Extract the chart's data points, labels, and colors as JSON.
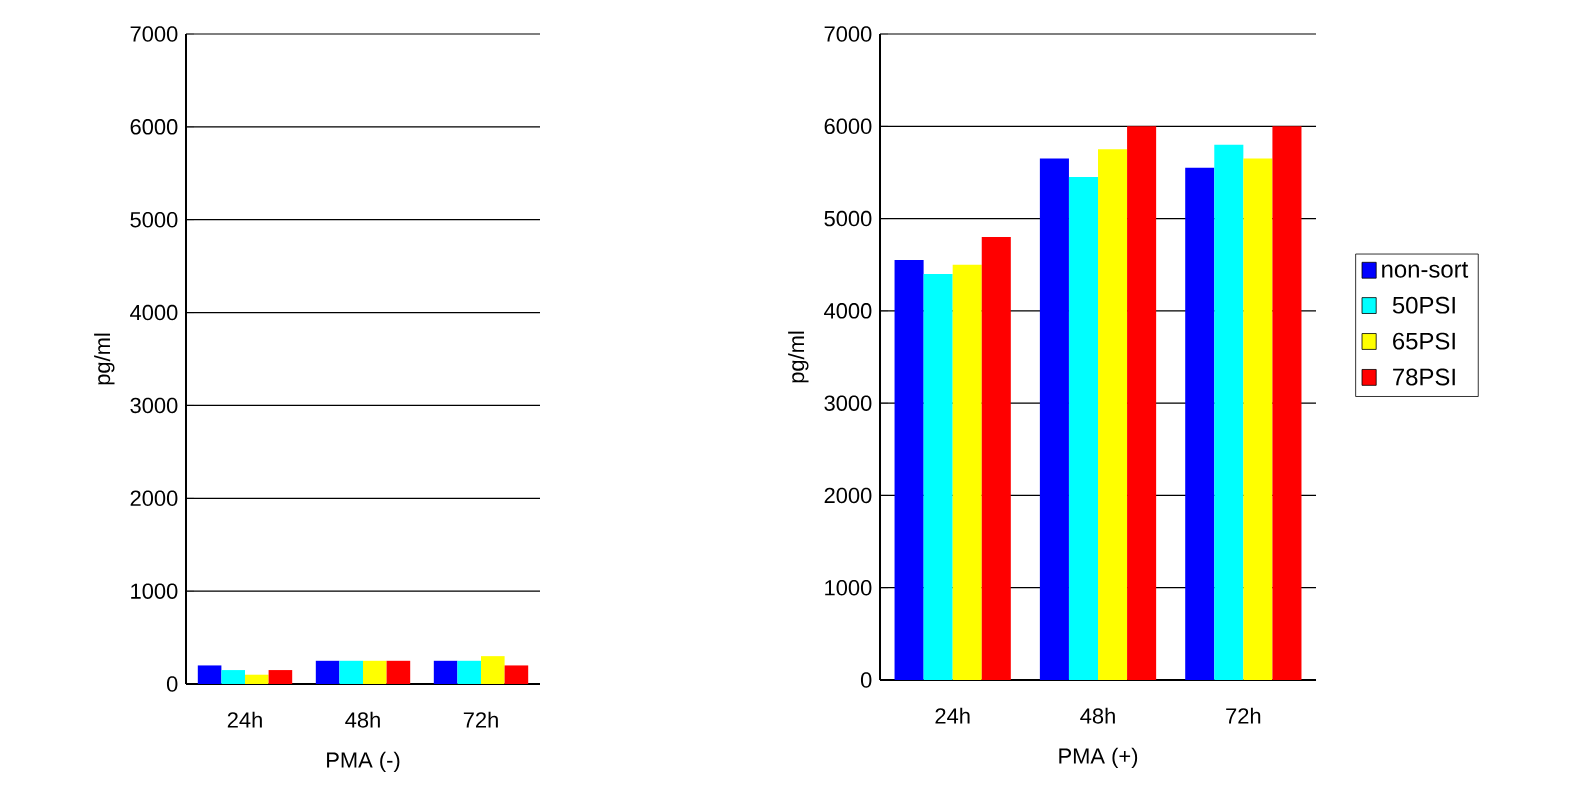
{
  "chart_data": [
    {
      "type": "bar",
      "xlabel": "PMA (-)",
      "ylabel": "pg/ml",
      "categories": [
        "24h",
        "48h",
        "72h"
      ],
      "series": [
        {
          "color": "#0000ff",
          "values": [
            200,
            250,
            250
          ]
        },
        {
          "color": "#00ffff",
          "values": [
            150,
            250,
            250
          ]
        },
        {
          "color": "#ffff00",
          "values": [
            100,
            250,
            300
          ]
        },
        {
          "color": "#ff0000",
          "values": [
            150,
            250,
            200
          ]
        }
      ],
      "ylim": [
        0,
        7000
      ],
      "yticks": [
        0,
        1000,
        2000,
        3000,
        4000,
        5000,
        6000,
        7000
      ],
      "grid": "y",
      "legend": false
    },
    {
      "type": "bar",
      "xlabel": "PMA (+)",
      "ylabel": "pg/ml",
      "categories": [
        "24h",
        "48h",
        "72h"
      ],
      "series": [
        {
          "name": "non-sort",
          "color": "#0000ff",
          "values": [
            4550,
            5650,
            5550
          ]
        },
        {
          "name": "50PSI",
          "color": "#00ffff",
          "values": [
            4400,
            5450,
            5800
          ]
        },
        {
          "name": "65PSI",
          "color": "#ffff00",
          "values": [
            4500,
            5750,
            5650
          ]
        },
        {
          "name": "78PSI",
          "color": "#ff0000",
          "values": [
            4800,
            6000,
            6000
          ]
        }
      ],
      "ylim": [
        0,
        7000
      ],
      "yticks": [
        0,
        1000,
        2000,
        3000,
        4000,
        5000,
        6000,
        7000
      ],
      "grid": "y",
      "legend": "right"
    }
  ]
}
